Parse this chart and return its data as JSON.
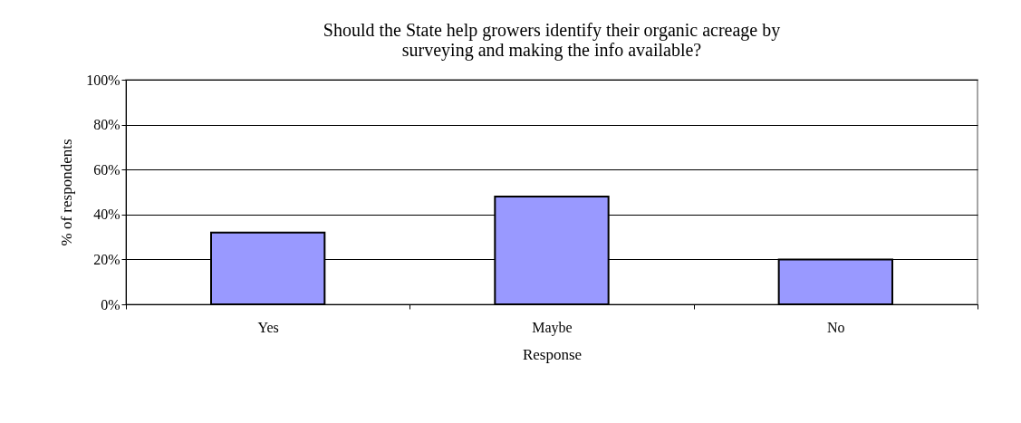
{
  "chart_data": {
    "type": "bar",
    "title": [
      "Should the State help growers identify their organic acreage by",
      "surveying and making the info available?"
    ],
    "xlabel": "Response",
    "ylabel": "% of respondents",
    "categories": [
      "Yes",
      "Maybe",
      "No"
    ],
    "values": [
      32,
      48,
      20
    ],
    "color": "#9999ff",
    "ylim": [
      0,
      100
    ],
    "yticks": [
      {
        "value": 0,
        "label": "0%"
      },
      {
        "value": 20,
        "label": "20%"
      },
      {
        "value": 40,
        "label": "40%"
      },
      {
        "value": 60,
        "label": "60%"
      },
      {
        "value": 80,
        "label": "80%"
      },
      {
        "value": 100,
        "label": "100%"
      }
    ],
    "grid": "y"
  }
}
